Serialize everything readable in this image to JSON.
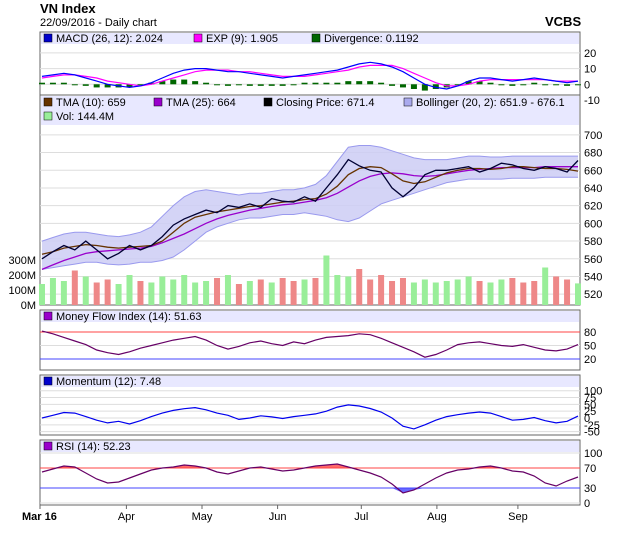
{
  "header": {
    "title": "VN Index",
    "subtitle": "22/09/2016 - Daily chart",
    "brand": "VCBS"
  },
  "colors": {
    "macd": "#0000ff",
    "exp": "#ff00ff",
    "divergence": "#006600",
    "tma10": "#663300",
    "tma25": "#9900cc",
    "close": "#000033",
    "bollinger_fill": "#ccccf5",
    "bollinger_line": "#9999ee",
    "vol_up": "#99ee99",
    "vol_down": "#ee8888",
    "mfi": "#660066",
    "momentum": "#0000ee",
    "rsi": "#660066",
    "overbought": "#ff4444",
    "oversold": "#4444ff",
    "panel_bg": "#e8e8ff"
  },
  "chart_data": [
    {
      "type": "line",
      "panel": "macd",
      "legend": [
        {
          "label": "MACD (26, 12): 2.024",
          "icon": "blue-square-icon"
        },
        {
          "label": "EXP (9): 1.905",
          "icon": "magenta-square-icon"
        },
        {
          "label": "Divergence: 0.1192",
          "icon": "green-square-icon"
        }
      ],
      "ylim": [
        -10,
        25
      ],
      "yticks": [
        20,
        10,
        0,
        -10
      ],
      "series": [
        {
          "name": "MACD (26, 12)",
          "values": [
            5,
            6,
            7,
            6,
            4,
            2,
            0,
            -1,
            -2,
            -1,
            1,
            4,
            7,
            9,
            10,
            10,
            9,
            8,
            8,
            7,
            6,
            5,
            4,
            5,
            6,
            7,
            8,
            9,
            11,
            13,
            14,
            13,
            11,
            8,
            4,
            0,
            -2,
            -3,
            -1,
            2,
            4,
            4,
            3,
            2,
            3,
            4,
            3,
            2,
            1,
            2
          ]
        },
        {
          "name": "EXP (9)",
          "values": [
            4,
            5,
            6,
            6,
            5,
            4,
            2,
            1,
            0,
            -1,
            0,
            2,
            4,
            6,
            8,
            9,
            9,
            9,
            8,
            8,
            7,
            6,
            5,
            5,
            5,
            6,
            7,
            8,
            9,
            11,
            12,
            12,
            12,
            10,
            7,
            4,
            1,
            -1,
            -1,
            0,
            2,
            3,
            3,
            3,
            3,
            3,
            3,
            2,
            2,
            2
          ]
        },
        {
          "name": "Divergence",
          "values": [
            1,
            1,
            1,
            0,
            -1,
            -2,
            -2,
            -2,
            -2,
            0,
            1,
            2,
            3,
            3,
            2,
            1,
            0,
            -1,
            0,
            -1,
            -1,
            -1,
            -1,
            0,
            1,
            1,
            1,
            1,
            2,
            2,
            2,
            1,
            -1,
            -2,
            -3,
            -4,
            -3,
            -2,
            0,
            2,
            2,
            1,
            0,
            -1,
            0,
            1,
            0,
            0,
            -1,
            0
          ]
        }
      ]
    },
    {
      "type": "line",
      "panel": "price",
      "legend": [
        {
          "label": "TMA (10): 659",
          "icon": "brown-square-icon"
        },
        {
          "label": "TMA (25): 664",
          "icon": "purple-square-icon"
        },
        {
          "label": "Closing Price: 671.4",
          "icon": "black-square-icon"
        },
        {
          "label": "Bollinger (20, 2): 651.9 - 676.1",
          "icon": "lavender-square-icon"
        },
        {
          "label": "Vol: 144.4M",
          "icon": "lightgreen-square-icon"
        }
      ],
      "ylim": [
        510,
        710
      ],
      "yticks": [
        700,
        680,
        660,
        640,
        620,
        600,
        580,
        560,
        540,
        520
      ],
      "volume_ticks": [
        "300M",
        "200M",
        "100M",
        "0M"
      ],
      "volume_max": 400,
      "series": [
        {
          "name": "Closing Price",
          "values": [
            560,
            568,
            575,
            570,
            580,
            570,
            560,
            566,
            575,
            570,
            575,
            585,
            598,
            605,
            610,
            615,
            612,
            620,
            618,
            622,
            618,
            628,
            625,
            624,
            630,
            625,
            640,
            655,
            672,
            665,
            660,
            658,
            640,
            630,
            640,
            655,
            660,
            660,
            662,
            664,
            658,
            662,
            668,
            666,
            662,
            660,
            664,
            662,
            658,
            671
          ]
        },
        {
          "name": "TMA (10)",
          "values": [
            565,
            568,
            572,
            574,
            576,
            575,
            573,
            572,
            573,
            574,
            575,
            580,
            590,
            600,
            607,
            610,
            613,
            615,
            617,
            619,
            620,
            622,
            624,
            625,
            627,
            628,
            633,
            642,
            655,
            662,
            664,
            663,
            656,
            648,
            645,
            647,
            652,
            657,
            660,
            662,
            662,
            661,
            662,
            664,
            664,
            663,
            662,
            662,
            661,
            659
          ]
        },
        {
          "name": "TMA (25)",
          "values": [
            548,
            553,
            558,
            562,
            566,
            568,
            569,
            570,
            571,
            572,
            574,
            578,
            583,
            588,
            594,
            600,
            605,
            609,
            612,
            615,
            617,
            619,
            621,
            622,
            624,
            626,
            629,
            634,
            641,
            648,
            653,
            656,
            657,
            656,
            654,
            653,
            654,
            656,
            658,
            660,
            661,
            662,
            663,
            663,
            663,
            663,
            664,
            664,
            664,
            664
          ]
        },
        {
          "name": "Bollinger Upper",
          "values": [
            580,
            584,
            588,
            590,
            590,
            588,
            586,
            585,
            587,
            590,
            596,
            608,
            620,
            630,
            636,
            638,
            636,
            634,
            632,
            634,
            634,
            636,
            638,
            638,
            640,
            644,
            654,
            670,
            686,
            688,
            688,
            686,
            682,
            678,
            674,
            672,
            672,
            672,
            674,
            676,
            676,
            675,
            675,
            676,
            676,
            676,
            676,
            676,
            676,
            676
          ]
        },
        {
          "name": "Bollinger Lower",
          "values": [
            548,
            550,
            552,
            554,
            556,
            556,
            554,
            553,
            554,
            556,
            556,
            558,
            562,
            570,
            580,
            590,
            596,
            600,
            604,
            606,
            606,
            608,
            610,
            610,
            612,
            610,
            608,
            604,
            602,
            606,
            614,
            622,
            626,
            630,
            634,
            638,
            642,
            646,
            648,
            650,
            650,
            650,
            650,
            651,
            651,
            651,
            652,
            652,
            652,
            652
          ]
        }
      ],
      "volume": [
        140,
        180,
        160,
        230,
        190,
        150,
        170,
        140,
        200,
        160,
        150,
        190,
        170,
        200,
        150,
        160,
        180,
        200,
        140,
        160,
        170,
        150,
        180,
        160,
        170,
        180,
        330,
        200,
        190,
        240,
        170,
        200,
        160,
        180,
        150,
        170,
        150,
        160,
        170,
        190,
        160,
        150,
        170,
        180,
        150,
        160,
        250,
        190,
        170,
        144
      ]
    },
    {
      "type": "line",
      "panel": "mfi",
      "legend": [
        {
          "label": "Money Flow Index (14): 51.63",
          "icon": "purple-square-icon"
        }
      ],
      "ylim": [
        0,
        100
      ],
      "yticks": [
        80,
        50,
        20
      ],
      "bands": {
        "overbought": 80,
        "oversold": 20
      },
      "series": [
        {
          "name": "Money Flow Index (14)",
          "values": [
            82,
            76,
            68,
            60,
            52,
            40,
            34,
            30,
            36,
            44,
            50,
            56,
            62,
            66,
            70,
            62,
            50,
            42,
            48,
            56,
            60,
            54,
            50,
            58,
            54,
            62,
            68,
            70,
            72,
            76,
            74,
            66,
            56,
            46,
            36,
            24,
            30,
            40,
            52,
            56,
            58,
            54,
            50,
            48,
            52,
            46,
            40,
            38,
            42,
            52
          ]
        }
      ]
    },
    {
      "type": "line",
      "panel": "momentum",
      "legend": [
        {
          "label": "Momentum (12): 7.48",
          "icon": "blue-square-icon"
        }
      ],
      "ylim": [
        -55,
        110
      ],
      "yticks": [
        100,
        75,
        50,
        25,
        0,
        -25,
        -50
      ],
      "series": [
        {
          "name": "Momentum (12)",
          "values": [
            0,
            10,
            20,
            18,
            5,
            -8,
            -18,
            -12,
            -22,
            -10,
            5,
            18,
            28,
            34,
            38,
            30,
            18,
            10,
            -5,
            0,
            8,
            4,
            -2,
            5,
            10,
            15,
            25,
            40,
            48,
            44,
            35,
            22,
            0,
            -30,
            -40,
            -25,
            -8,
            5,
            12,
            18,
            22,
            18,
            5,
            -8,
            -5,
            2,
            -10,
            -18,
            -12,
            7
          ]
        }
      ]
    },
    {
      "type": "line",
      "panel": "rsi",
      "legend": [
        {
          "label": "RSI (14): 52.23",
          "icon": "purple-square-icon"
        }
      ],
      "ylim": [
        0,
        100
      ],
      "yticks": [
        100,
        70,
        30,
        0
      ],
      "bands": {
        "overbought": 70,
        "oversold": 30
      },
      "series": [
        {
          "name": "RSI (14)",
          "values": [
            62,
            68,
            74,
            72,
            60,
            48,
            40,
            42,
            50,
            58,
            66,
            70,
            72,
            76,
            74,
            70,
            62,
            58,
            64,
            70,
            72,
            68,
            64,
            66,
            70,
            74,
            76,
            78,
            72,
            66,
            60,
            52,
            38,
            20,
            26,
            38,
            50,
            60,
            66,
            68,
            72,
            74,
            70,
            64,
            62,
            54,
            40,
            34,
            44,
            52
          ]
        }
      ]
    }
  ],
  "x_axis": {
    "labels": [
      {
        "text": "Mar 16",
        "frac": 0.0,
        "bold": true
      },
      {
        "text": "Apr",
        "frac": 0.16
      },
      {
        "text": "May",
        "frac": 0.3
      },
      {
        "text": "Jun",
        "frac": 0.44
      },
      {
        "text": "Jul",
        "frac": 0.595
      },
      {
        "text": "Aug",
        "frac": 0.735
      },
      {
        "text": "Sep",
        "frac": 0.885
      }
    ]
  }
}
